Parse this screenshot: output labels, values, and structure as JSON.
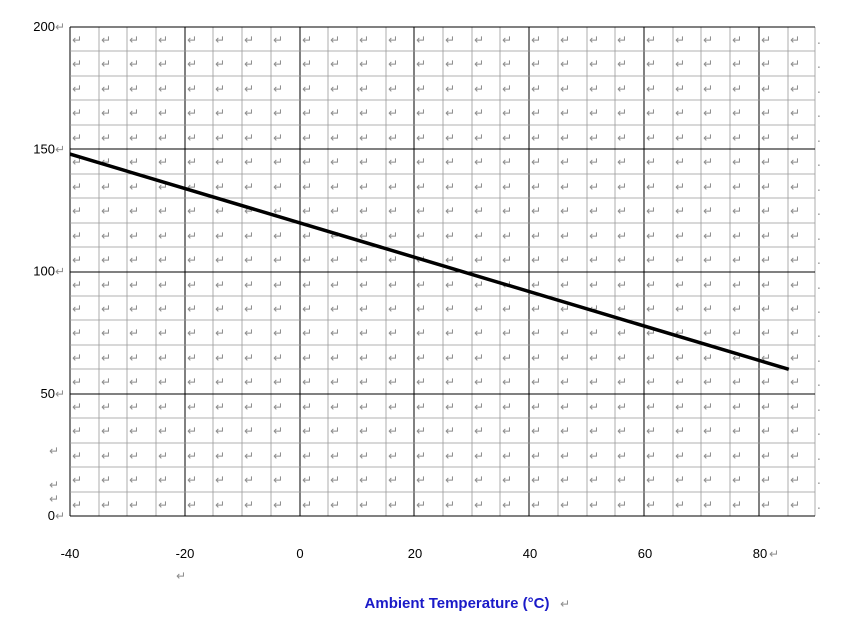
{
  "chart_data": {
    "type": "line",
    "title": "",
    "xlabel": "Ambient Temperature (°C)",
    "ylabel": "",
    "xlim": [
      -40,
      90
    ],
    "ylim": [
      0,
      200
    ],
    "xticks": [
      -40,
      -20,
      0,
      20,
      40,
      60,
      80
    ],
    "yticks": [
      0,
      50,
      100,
      150,
      200
    ],
    "grid": true,
    "legend": "none",
    "series": [
      {
        "x": [
          -40,
          85
        ],
        "y": [
          148,
          60
        ]
      }
    ],
    "colors": {
      "line": "#000000",
      "xlabel": "#1a1ac8",
      "grid_major": "#000000",
      "grid_minor": "#999999",
      "return_mark": "#8c8c8c"
    }
  },
  "return_mark": "↵"
}
